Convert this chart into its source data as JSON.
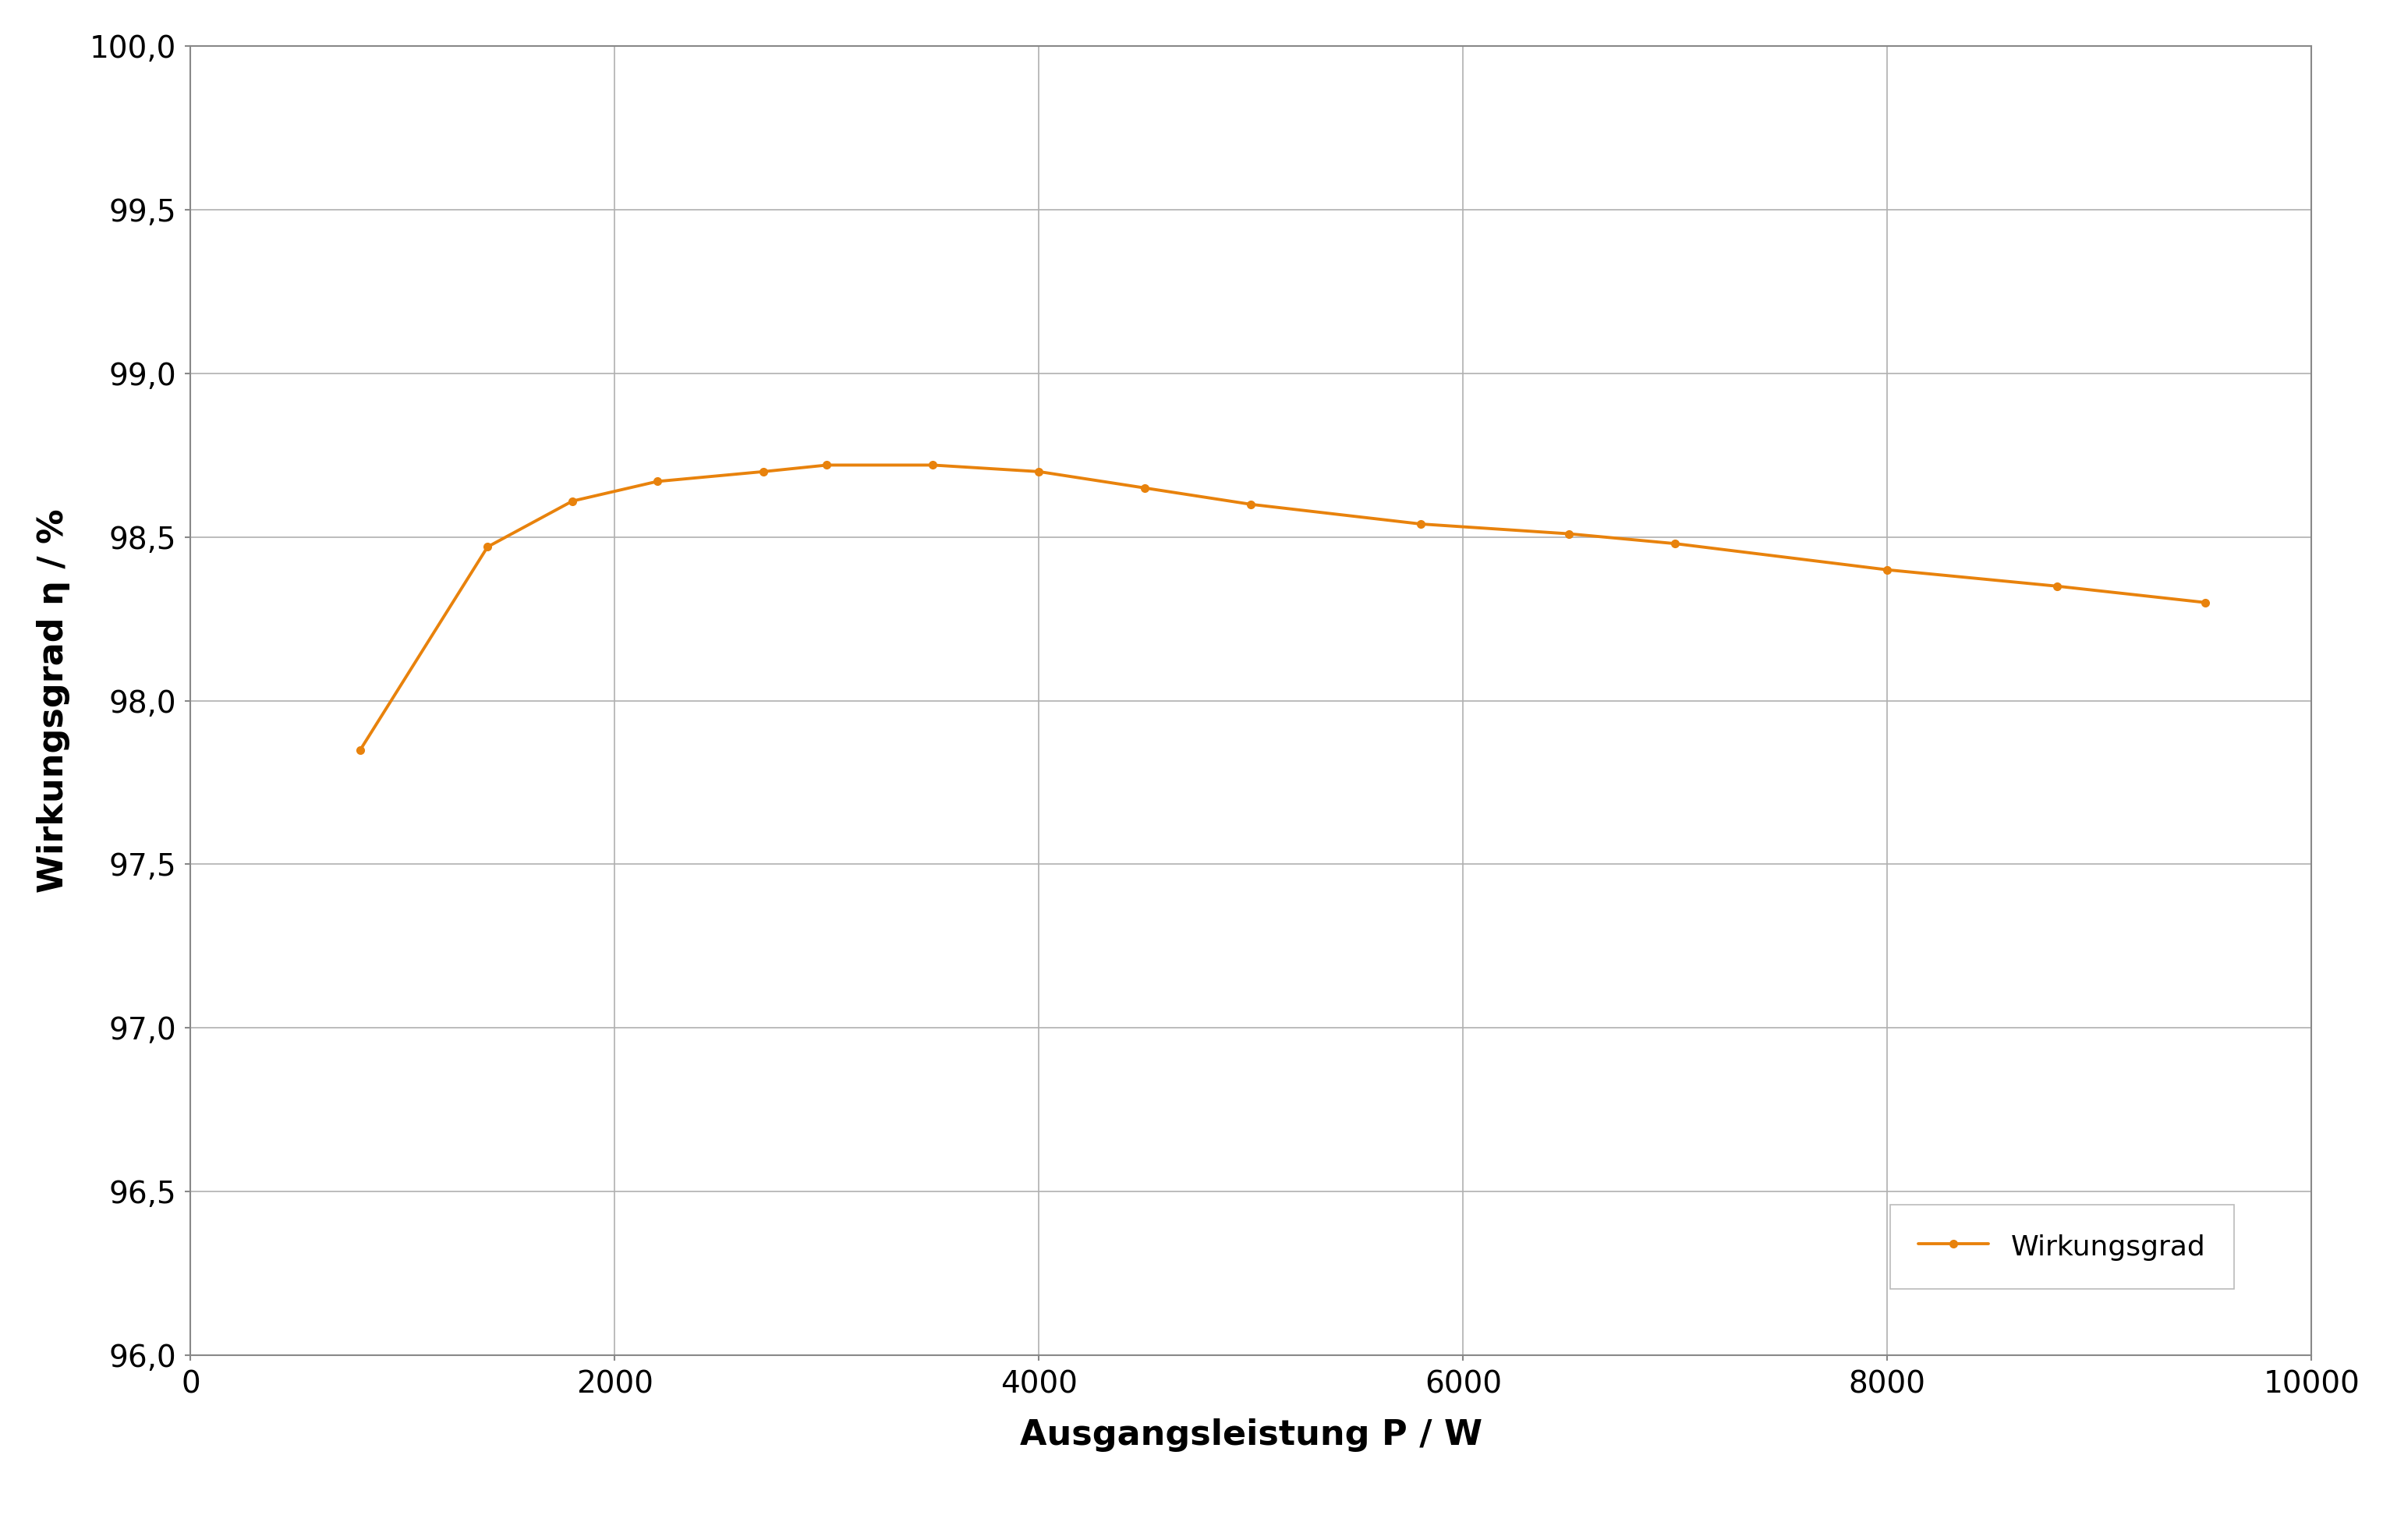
{
  "x": [
    800,
    1400,
    1800,
    2200,
    2700,
    3000,
    3500,
    4000,
    4500,
    5000,
    5800,
    6500,
    7000,
    8000,
    8800,
    9500
  ],
  "y": [
    97.85,
    98.47,
    98.61,
    98.67,
    98.7,
    98.72,
    98.72,
    98.7,
    98.65,
    98.6,
    98.54,
    98.51,
    98.48,
    98.4,
    98.35,
    98.3
  ],
  "line_color": "#E8820C",
  "marker": "o",
  "markersize": 7,
  "linewidth": 2.8,
  "ylabel": "Wirkungsgrad η / %",
  "xlabel": "Ausgangsleistung P / W",
  "legend_label": "Wirkungsgrad",
  "ylim": [
    96.0,
    100.0
  ],
  "xlim": [
    0,
    10000
  ],
  "yticks": [
    96.0,
    96.5,
    97.0,
    97.5,
    98.0,
    98.5,
    99.0,
    99.5,
    100.0
  ],
  "xticks": [
    0,
    2000,
    4000,
    6000,
    8000,
    10000
  ],
  "background_color": "#ffffff",
  "grid_color": "#b0b0b0",
  "tick_fontsize": 28,
  "label_fontsize": 32,
  "legend_fontsize": 26
}
